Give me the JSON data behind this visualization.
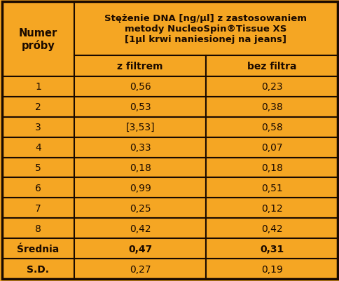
{
  "col_header_main_line1": "Stężenie DNA [ng/μl] z zastosowaniem",
  "col_header_main_line2": "metody NucleoSpin®Tissue XS",
  "col_header_main_line3": "[1μl krwi naniesionej na jeans]",
  "col_header_sub": [
    "z filtrem",
    "bez filtra"
  ],
  "row_labels_display": [
    "1",
    "2",
    "3",
    "4",
    "5",
    "6",
    "7",
    "8",
    "Średnia",
    "S.D."
  ],
  "col1_values": [
    "0,56",
    "0,53",
    "[3,53]",
    "0,33",
    "0,18",
    "0,99",
    "0,25",
    "0,42",
    "0,47",
    "0,27"
  ],
  "col2_values": [
    "0,23",
    "0,38",
    "0,58",
    "0,07",
    "0,18",
    "0,51",
    "0,12",
    "0,42",
    "0,31",
    "0,19"
  ],
  "row_label_header": "Numer\npróby",
  "bg_color": "#F5A623",
  "border_color": "#1a0a00",
  "text_color": "#1a0a00",
  "fig_width": 4.85,
  "fig_height": 4.02,
  "dpi": 100
}
